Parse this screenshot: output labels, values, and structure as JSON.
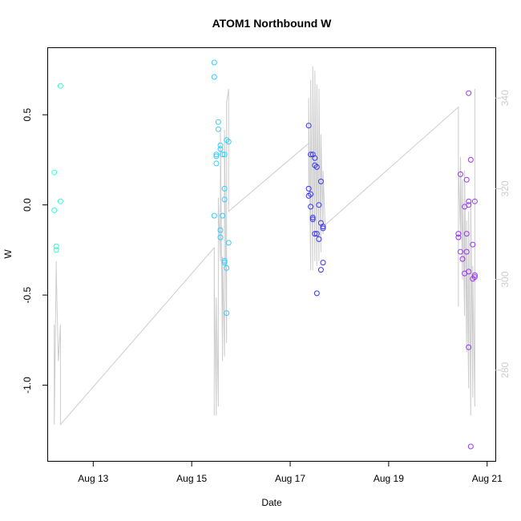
{
  "chart_data": {
    "type": "scatter",
    "title": "ATOM1 Northbound W",
    "xlabel": "Date",
    "ylabel": "W",
    "x_ticks": [
      {
        "date": "2018-08-13",
        "label": "Aug 13"
      },
      {
        "date": "2018-08-15",
        "label": "Aug 15"
      },
      {
        "date": "2018-08-17",
        "label": "Aug 17"
      },
      {
        "date": "2018-08-19",
        "label": "Aug 19"
      },
      {
        "date": "2018-08-21",
        "label": "Aug 21"
      }
    ],
    "y_ticks": [
      "-1.0",
      "-0.5",
      "0.0",
      "0.5"
    ],
    "y_tick_values": [
      -1.0,
      -0.5,
      0.0,
      0.5
    ],
    "y2_ticks": [
      "280",
      "300",
      "320",
      "340"
    ],
    "y2_tick_values": [
      280,
      300,
      320,
      340
    ],
    "xlim": [
      "2018-08-12T02:00",
      "2018-08-21T04:00"
    ],
    "ylim": [
      -1.42,
      0.87
    ],
    "y2lim": [
      260,
      351
    ],
    "grid": false,
    "series": [
      {
        "color": "#33ffcc",
        "points": [
          [
            "2018-08-12T05:00",
            0.18
          ],
          [
            "2018-08-12T05:00",
            -0.03
          ],
          [
            "2018-08-12T06:00",
            -0.23
          ],
          [
            "2018-08-12T06:00",
            -0.25
          ],
          [
            "2018-08-12T08:00",
            0.66
          ],
          [
            "2018-08-12T08:00",
            0.02
          ]
        ]
      },
      {
        "color": "#33ccff",
        "points": [
          [
            "2018-08-15T11:00",
            0.79
          ],
          [
            "2018-08-15T11:00",
            0.71
          ],
          [
            "2018-08-15T12:00",
            0.28
          ],
          [
            "2018-08-15T12:00",
            0.27
          ],
          [
            "2018-08-15T12:00",
            0.23
          ],
          [
            "2018-08-15T13:00",
            0.46
          ],
          [
            "2018-08-15T13:00",
            0.42
          ],
          [
            "2018-08-15T14:00",
            0.33
          ],
          [
            "2018-08-15T14:00",
            0.31
          ],
          [
            "2018-08-15T15:00",
            0.28
          ],
          [
            "2018-08-15T11:00",
            -0.06
          ],
          [
            "2018-08-15T14:00",
            -0.18
          ],
          [
            "2018-08-15T14:00",
            -0.14
          ],
          [
            "2018-08-15T15:00",
            -0.06
          ],
          [
            "2018-08-15T16:00",
            0.09
          ],
          [
            "2018-08-15T16:00",
            0.03
          ],
          [
            "2018-08-15T16:00",
            0.28
          ],
          [
            "2018-08-15T17:00",
            0.36
          ],
          [
            "2018-08-15T16:00",
            -0.31
          ],
          [
            "2018-08-15T16:00",
            -0.32
          ],
          [
            "2018-08-15T18:00",
            0.35
          ],
          [
            "2018-08-15T17:00",
            -0.35
          ],
          [
            "2018-08-15T18:00",
            -0.21
          ],
          [
            "2018-08-15T17:00",
            -0.6
          ]
        ]
      },
      {
        "color": "#3333ff",
        "points": [
          [
            "2018-08-17T09:00",
            0.44
          ],
          [
            "2018-08-17T09:00",
            0.05
          ],
          [
            "2018-08-17T09:00",
            0.09
          ],
          [
            "2018-08-17T10:00",
            0.28
          ],
          [
            "2018-08-17T10:00",
            0.06
          ],
          [
            "2018-08-17T10:00",
            -0.01
          ],
          [
            "2018-08-17T11:00",
            0.28
          ],
          [
            "2018-08-17T11:00",
            -0.07
          ],
          [
            "2018-08-17T11:00",
            -0.08
          ],
          [
            "2018-08-17T12:00",
            0.26
          ],
          [
            "2018-08-17T12:00",
            0.22
          ],
          [
            "2018-08-17T12:00",
            -0.16
          ],
          [
            "2018-08-17T13:00",
            -0.16
          ],
          [
            "2018-08-17T13:00",
            0.21
          ],
          [
            "2018-08-17T14:00",
            0.0
          ],
          [
            "2018-08-17T14:00",
            -0.19
          ],
          [
            "2018-08-17T15:00",
            0.13
          ],
          [
            "2018-08-17T15:00",
            -0.1
          ],
          [
            "2018-08-17T15:00",
            -0.36
          ],
          [
            "2018-08-17T16:00",
            -0.12
          ],
          [
            "2018-08-17T16:00",
            -0.32
          ],
          [
            "2018-08-17T16:00",
            -0.13
          ],
          [
            "2018-08-17T13:00",
            -0.49
          ]
        ]
      },
      {
        "color": "#9933ff",
        "points": [
          [
            "2018-08-20T10:00",
            -0.16
          ],
          [
            "2018-08-20T10:00",
            -0.18
          ],
          [
            "2018-08-20T11:00",
            0.17
          ],
          [
            "2018-08-20T11:00",
            -0.26
          ],
          [
            "2018-08-20T12:00",
            -0.3
          ],
          [
            "2018-08-20T13:00",
            -0.38
          ],
          [
            "2018-08-20T13:00",
            -0.01
          ],
          [
            "2018-08-20T14:00",
            0.14
          ],
          [
            "2018-08-20T14:00",
            -0.26
          ],
          [
            "2018-08-20T14:00",
            -0.16
          ],
          [
            "2018-08-20T15:00",
            0.0
          ],
          [
            "2018-08-20T15:00",
            0.02
          ],
          [
            "2018-08-20T15:00",
            0.62
          ],
          [
            "2018-08-20T15:00",
            -0.37
          ],
          [
            "2018-08-20T15:00",
            -0.79
          ],
          [
            "2018-08-20T16:00",
            0.25
          ],
          [
            "2018-08-20T16:00",
            -1.34
          ],
          [
            "2018-08-20T17:00",
            -0.41
          ],
          [
            "2018-08-20T17:00",
            -0.22
          ],
          [
            "2018-08-20T18:00",
            -0.4
          ],
          [
            "2018-08-20T18:00",
            0.02
          ],
          [
            "2018-08-20T18:00",
            -0.39
          ]
        ]
      }
    ],
    "overlay_line": {
      "color": "#cccccc",
      "axis": "right",
      "points": [
        [
          "2018-08-12T05:00",
          290
        ],
        [
          "2018-08-12T05:00",
          268
        ],
        [
          "2018-08-12T06:00",
          304
        ],
        [
          "2018-08-12T06:00",
          302
        ],
        [
          "2018-08-12T07:00",
          282
        ],
        [
          "2018-08-12T08:00",
          290
        ],
        [
          "2018-08-12T08:00",
          268
        ],
        [
          "2018-08-15T11:00",
          307
        ],
        [
          "2018-08-15T11:00",
          270
        ],
        [
          "2018-08-15T11:00",
          300
        ],
        [
          "2018-08-15T12:00",
          270
        ],
        [
          "2018-08-15T12:00",
          296
        ],
        [
          "2018-08-15T13:00",
          272
        ],
        [
          "2018-08-15T13:00",
          318
        ],
        [
          "2018-08-15T14:00",
          304
        ],
        [
          "2018-08-15T14:00",
          333
        ],
        [
          "2018-08-15T15:00",
          282
        ],
        [
          "2018-08-15T15:00",
          305
        ],
        [
          "2018-08-15T16:00",
          283
        ],
        [
          "2018-08-15T16:00",
          333
        ],
        [
          "2018-08-15T17:00",
          286
        ],
        [
          "2018-08-15T17:00",
          339
        ],
        [
          "2018-08-15T18:00",
          342
        ],
        [
          "2018-08-15T18:00",
          315
        ],
        [
          "2018-08-17T09:00",
          330
        ],
        [
          "2018-08-17T09:00",
          320
        ],
        [
          "2018-08-17T09:00",
          340
        ],
        [
          "2018-08-17T10:00",
          302
        ],
        [
          "2018-08-17T10:00",
          344
        ],
        [
          "2018-08-17T11:00",
          302
        ],
        [
          "2018-08-17T11:00",
          347
        ],
        [
          "2018-08-17T12:00",
          304
        ],
        [
          "2018-08-17T12:00",
          346
        ],
        [
          "2018-08-17T13:00",
          303
        ],
        [
          "2018-08-17T13:00",
          343
        ],
        [
          "2018-08-17T14:00",
          304
        ],
        [
          "2018-08-17T14:00",
          342
        ],
        [
          "2018-08-17T15:00",
          306
        ],
        [
          "2018-08-17T15:00",
          332
        ],
        [
          "2018-08-17T16:00",
          310
        ],
        [
          "2018-08-17T16:00",
          324
        ],
        [
          "2018-08-17T17:00",
          312
        ],
        [
          "2018-08-20T10:00",
          338
        ],
        [
          "2018-08-20T10:00",
          294
        ],
        [
          "2018-08-20T10:00",
          325
        ],
        [
          "2018-08-20T11:00",
          310
        ],
        [
          "2018-08-20T11:00",
          327
        ],
        [
          "2018-08-20T12:00",
          300
        ],
        [
          "2018-08-20T12:00",
          322
        ],
        [
          "2018-08-20T13:00",
          292
        ],
        [
          "2018-08-20T13:00",
          324
        ],
        [
          "2018-08-20T14:00",
          284
        ],
        [
          "2018-08-20T14:00",
          313
        ],
        [
          "2018-08-20T15:00",
          276
        ],
        [
          "2018-08-20T15:00",
          315
        ],
        [
          "2018-08-20T16:00",
          270
        ],
        [
          "2018-08-20T16:00",
          317
        ],
        [
          "2018-08-20T17:00",
          274
        ],
        [
          "2018-08-20T17:00",
          303
        ],
        [
          "2018-08-20T18:00",
          272
        ],
        [
          "2018-08-20T18:00",
          342
        ]
      ]
    }
  }
}
